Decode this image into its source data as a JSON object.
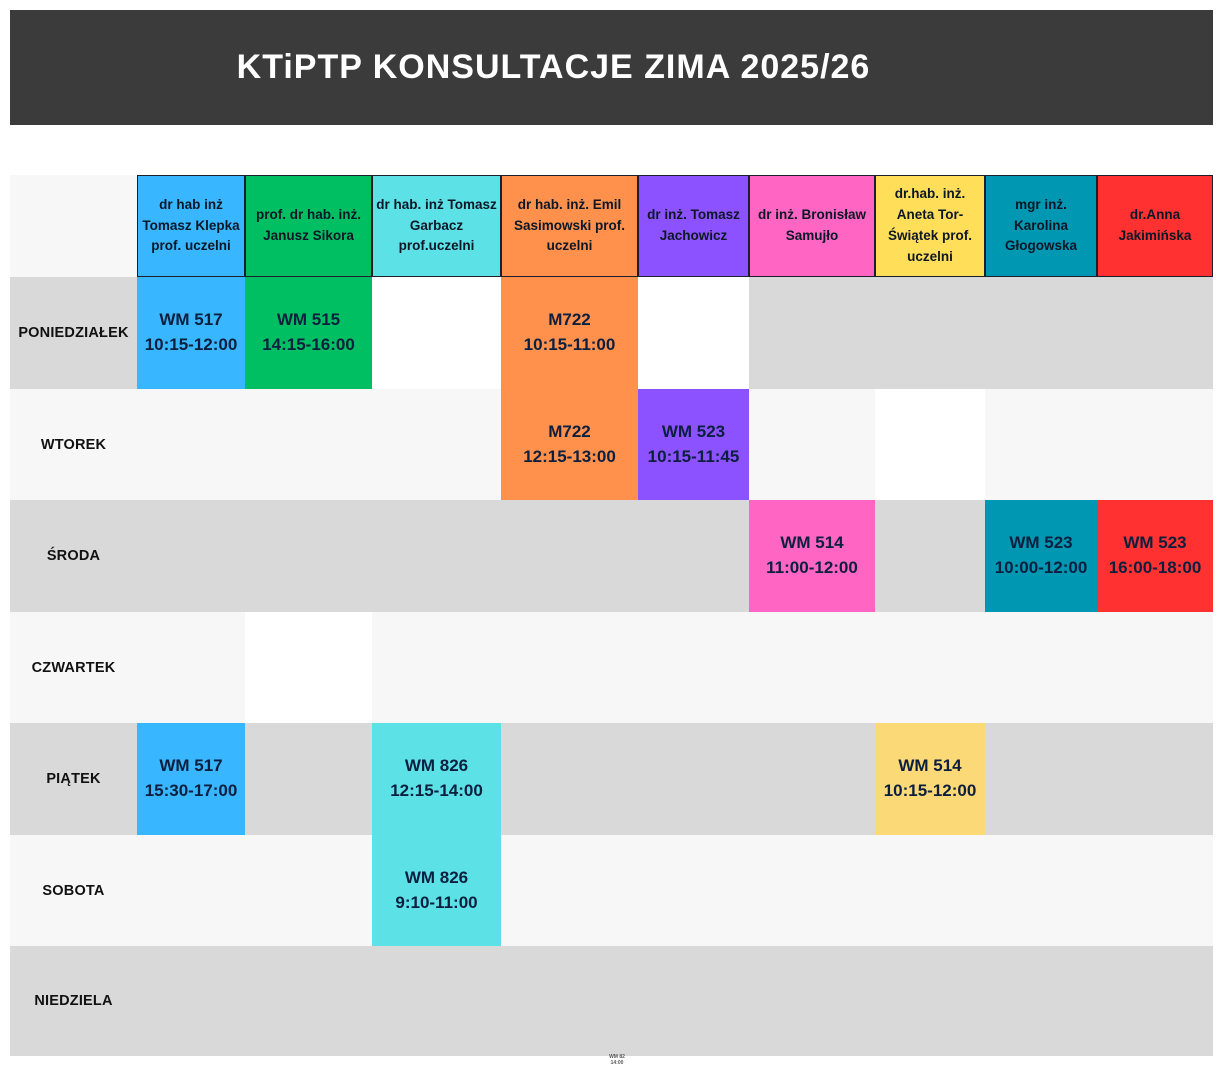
{
  "title": "KTiPTP KONSULTACJE ZIMA 2025/26",
  "colors": {
    "banner": "#3b3b3b",
    "title_text": "#ffffff",
    "row_gray": "#d9d9d9",
    "row_light": "#f7f7f7",
    "border": "#1a1f2b",
    "header_text": "#0d1726",
    "day_text": "#111111",
    "cell_text": "#0c1f3e"
  },
  "columns": [
    {
      "name": "dr hab inż Tomasz Klepka prof. uczelni",
      "color": "#38b6ff"
    },
    {
      "name": "prof. dr hab. inż. Janusz Sikora",
      "color": "#00bf63"
    },
    {
      "name": "dr hab. inż Tomasz Garbacz prof.uczelni",
      "color": "#5ce1e6"
    },
    {
      "name": "dr hab. inż. Emil Sasimowski prof. uczelni",
      "color": "#ff914d"
    },
    {
      "name": "dr inż. Tomasz Jachowicz",
      "color": "#8c52ff"
    },
    {
      "name": "dr inż. Bronisław Samujło",
      "color": "#ff66c4"
    },
    {
      "name": "dr.hab. inż. Aneta Tor-Świątek prof. uczelni",
      "color": "#ffde59"
    },
    {
      "name": "mgr inż. Karolina Głogowska",
      "color": "#0097b2"
    },
    {
      "name": "dr.Anna Jakimińska",
      "color": "#ff3131"
    }
  ],
  "rows": [
    {
      "day": "PONIEDZIAŁEK",
      "bg": "#d9d9d9",
      "cells": [
        {
          "col": 0,
          "room": "WM 517",
          "time": "10:15-12:00",
          "color": "#38b6ff"
        },
        {
          "col": 1,
          "room": "WM 515",
          "time": "14:15-16:00",
          "color": "#00bf63"
        },
        {
          "col": 2,
          "bg": "#ffffff"
        },
        {
          "col": 3,
          "room": "M722",
          "time": "10:15-11:00",
          "color": "#ff914d"
        },
        {
          "col": 4,
          "bg": "#ffffff"
        }
      ]
    },
    {
      "day": "WTOREK",
      "bg": "#f7f7f7",
      "cells": [
        {
          "col": 3,
          "room": "M722",
          "time": "12:15-13:00",
          "color": "#ff914d"
        },
        {
          "col": 4,
          "room": "WM 523",
          "time": "10:15-11:45",
          "color": "#8c52ff"
        },
        {
          "col": 6,
          "bg": "#ffffff"
        }
      ]
    },
    {
      "day": "ŚRODA",
      "bg": "#d9d9d9",
      "cells": [
        {
          "col": 5,
          "room": "WM 514",
          "time": "11:00-12:00",
          "color": "#ff66c4"
        },
        {
          "col": 7,
          "room": "WM 523",
          "time": "10:00-12:00",
          "color": "#0097b2"
        },
        {
          "col": 8,
          "room": "WM 523",
          "time": "16:00-18:00",
          "color": "#ff3131"
        }
      ]
    },
    {
      "day": "CZWARTEK",
      "bg": "#f7f7f7",
      "cells": [
        {
          "col": 1,
          "bg": "#ffffff"
        }
      ]
    },
    {
      "day": "PIĄTEK",
      "bg": "#d9d9d9",
      "cells": [
        {
          "col": 0,
          "room": "WM 517",
          "time": "15:30-17:00",
          "color": "#38b6ff"
        },
        {
          "col": 2,
          "room": "WM 826",
          "time": "12:15-14:00",
          "color": "#5ce1e6"
        },
        {
          "col": 6,
          "room": "WM 514",
          "time": "10:15-12:00",
          "color": "#fbd977"
        }
      ]
    },
    {
      "day": "SOBOTA",
      "bg": "#f7f7f7",
      "cells": [
        {
          "col": 2,
          "room": "WM 826",
          "time": "9:10-11:00",
          "color": "#5ce1e6"
        }
      ]
    },
    {
      "day": "NIEDZIELA",
      "bg": "#d9d9d9",
      "cells": []
    }
  ],
  "footnote": {
    "line1": "WM 82",
    "line2": "14:00"
  }
}
